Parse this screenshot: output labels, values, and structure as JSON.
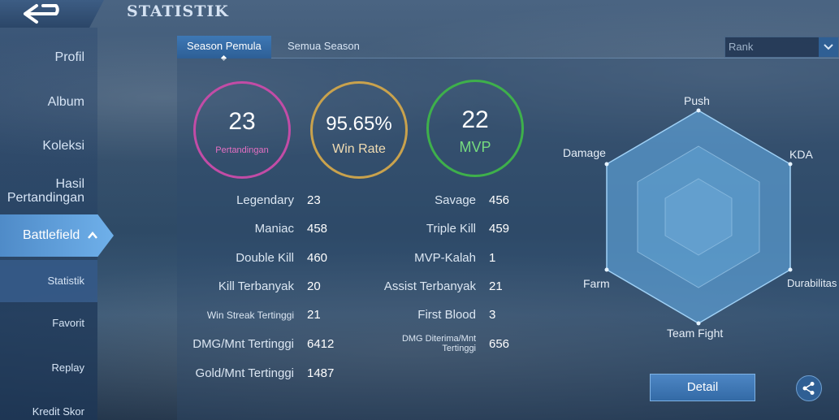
{
  "header": {
    "title": "STATISTIK"
  },
  "sidebar": {
    "items": [
      {
        "label": "Profil"
      },
      {
        "label": "Album"
      },
      {
        "label": "Koleksi"
      },
      {
        "label": "Hasil Pertandingan"
      }
    ],
    "active": {
      "label": "Battlefield"
    },
    "sub_items": [
      {
        "label": "Statistik"
      },
      {
        "label": "Favorit"
      },
      {
        "label": "Replay"
      },
      {
        "label": "Kredit Skor"
      }
    ]
  },
  "tabs": [
    {
      "label": "Season Pemula"
    },
    {
      "label": "Semua Season"
    }
  ],
  "filter": {
    "selected": "Rank"
  },
  "summary": [
    {
      "value": "23",
      "label": "Pertandingan",
      "color": "#c24ca6"
    },
    {
      "value": "95.65%",
      "label": "Win Rate",
      "color": "#c9a24d"
    },
    {
      "value": "22",
      "label": "MVP",
      "color": "#3eb04b"
    }
  ],
  "stats_left": [
    {
      "label": "Legendary",
      "value": "23"
    },
    {
      "label": "Maniac",
      "value": "458"
    },
    {
      "label": "Double Kill",
      "value": "460"
    },
    {
      "label": "Kill Terbanyak",
      "value": "20"
    },
    {
      "label": "Win Streak Tertinggi",
      "value": "21"
    },
    {
      "label": "DMG/Mnt Tertinggi",
      "value": "6412"
    },
    {
      "label": "Gold/Mnt Tertinggi",
      "value": "1487"
    }
  ],
  "stats_right": [
    {
      "label": "Savage",
      "value": "456"
    },
    {
      "label": "Triple Kill",
      "value": "459"
    },
    {
      "label": "MVP-Kalah",
      "value": "1"
    },
    {
      "label": "Assist Terbanyak",
      "value": "21"
    },
    {
      "label": "First Blood",
      "value": "3"
    },
    {
      "label": "DMG Diterima/Mnt Tertinggi",
      "value": "656"
    }
  ],
  "radar": {
    "labels": [
      "Push",
      "KDA",
      "Durabilitas",
      "Team Fight",
      "Farm",
      "Damage"
    ]
  },
  "actions": {
    "detail_label": "Detail"
  },
  "icons": {
    "back": "back-arrow-icon",
    "share": "share-icon",
    "dropdown": "chevron-down-icon",
    "expand": "chevron-up-icon"
  }
}
